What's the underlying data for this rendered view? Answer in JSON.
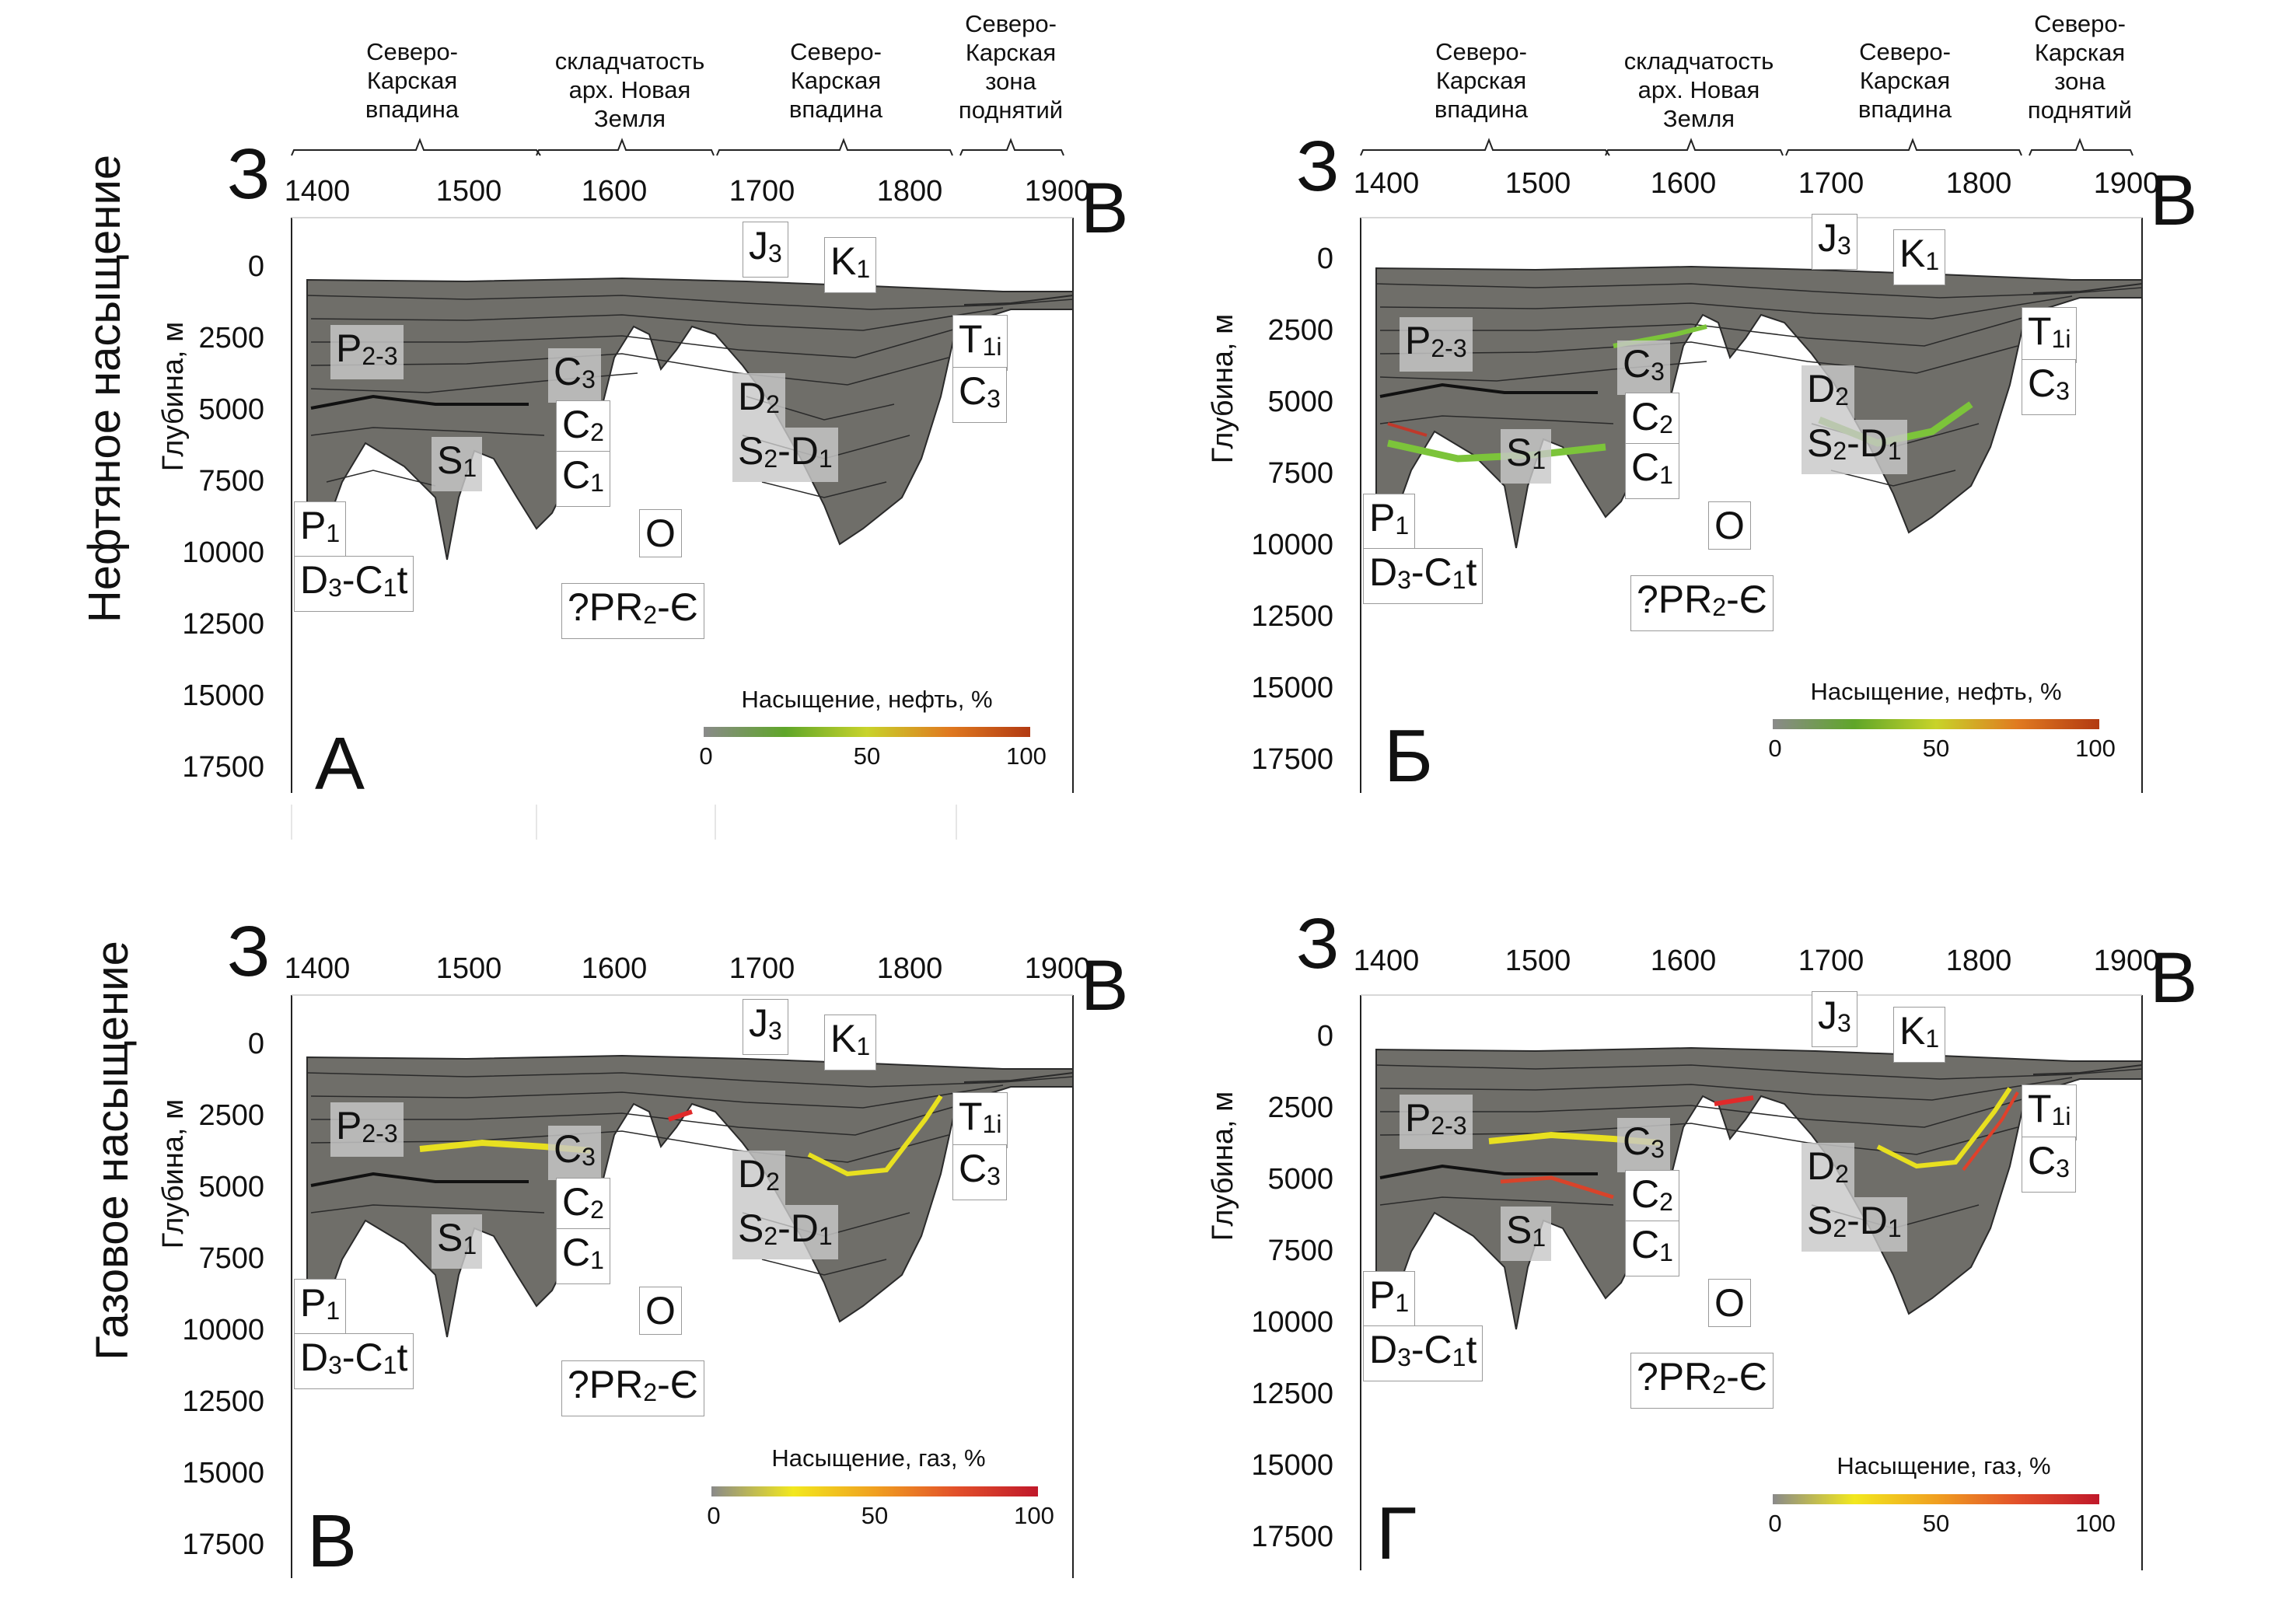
{
  "row_labels": [
    "Нефтяное насыщение",
    "Газовое насыщение"
  ],
  "regions": [
    {
      "text": "Северо-\nКарская\nвпадина"
    },
    {
      "text": "складчатость\nарх. Новая\nЗемля"
    },
    {
      "text": "Северо-\nКарская\nвпадина"
    },
    {
      "text": "Северо-\nКарская\nзона\nподнятий"
    }
  ],
  "direction_west": "З",
  "direction_east": "В",
  "x_ticks": [
    "1400",
    "1500",
    "1600",
    "1700",
    "1800",
    "1900"
  ],
  "y_ticks": [
    "0",
    "2500",
    "5000",
    "7500",
    "10000",
    "12500",
    "15000",
    "17500"
  ],
  "y_axis_label": "Глубина, м",
  "strata_labels": {
    "P23": {
      "main": "P",
      "sub": "2-3"
    },
    "C3a": {
      "main": "C",
      "sub": "3"
    },
    "C2": {
      "main": "C",
      "sub": "2"
    },
    "C1": {
      "main": "C",
      "sub": "1"
    },
    "S1": {
      "main": "S",
      "sub": "1"
    },
    "P1": {
      "main": "P",
      "sub": "1"
    },
    "D3C1t": {
      "main": "D",
      "sub": "3",
      "tail_main": "-C",
      "tail_sub": "1",
      "tail": "t"
    },
    "PR2C": {
      "pre": "?PR",
      "sub": "2",
      "post": "-Є"
    },
    "O": {
      "main": "O"
    },
    "D2": {
      "main": "D",
      "sub": "2"
    },
    "S2D1": {
      "main": "S",
      "sub": "2",
      "tail_main": "-D",
      "tail_sub": "1"
    },
    "J3": {
      "main": "J",
      "sub": "3"
    },
    "K1": {
      "main": "K",
      "sub": "1"
    },
    "T1i": {
      "main": "T",
      "sub": "1i"
    },
    "C3b": {
      "main": "C",
      "sub": "3"
    }
  },
  "panels": [
    {
      "letter": "А",
      "fluid": "oil",
      "colorbar": {
        "title": "Насыщение, нефть, %",
        "ticks": [
          "0",
          "50",
          "100"
        ],
        "colors": [
          "#8a8a8a",
          "#5fa629",
          "#c8d32a",
          "#e07a20",
          "#b23a12"
        ]
      }
    },
    {
      "letter": "Б",
      "fluid": "oil",
      "colorbar": {
        "title": "Насыщение, нефть, %",
        "ticks": [
          "0",
          "50",
          "100"
        ],
        "colors": [
          "#8a8a8a",
          "#5fa629",
          "#c8d32a",
          "#e07a20",
          "#b23a12"
        ]
      }
    },
    {
      "letter": "В",
      "fluid": "gas",
      "colorbar": {
        "title": "Насыщение, газ, %",
        "ticks": [
          "0",
          "50",
          "100"
        ],
        "colors": [
          "#8a8a8a",
          "#f2e81e",
          "#f0a020",
          "#e2502a",
          "#c0182a"
        ]
      }
    },
    {
      "letter": "Г",
      "fluid": "gas",
      "colorbar": {
        "title": "Насыщение, газ, %",
        "ticks": [
          "0",
          "50",
          "100"
        ],
        "colors": [
          "#8a8a8a",
          "#f2e81e",
          "#f0a020",
          "#e2502a",
          "#c0182a"
        ]
      }
    }
  ],
  "colors": {
    "section_fill": "#6f6e69",
    "horizon_line": "#2a2a2a"
  }
}
